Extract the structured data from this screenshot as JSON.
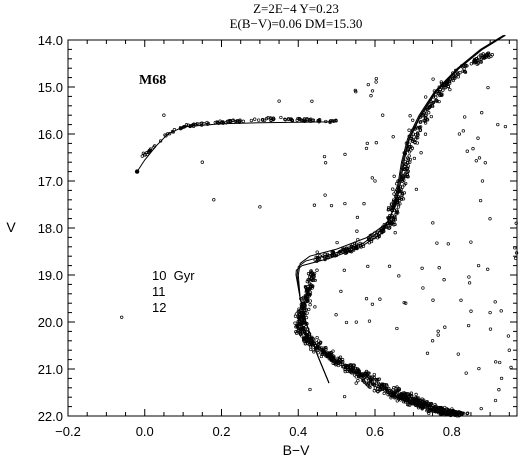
{
  "chart_data": {
    "type": "scatter",
    "title_lines": [
      "Z=2E−4 Y=0.23",
      "E(B−V)=0.06 DM=15.30"
    ],
    "cluster_label": "M68",
    "xlabel": "B−V",
    "ylabel": "V",
    "xlim": [
      -0.2,
      0.97
    ],
    "ylim": [
      22.0,
      14.0
    ],
    "y_inverted": true,
    "grid": false,
    "legend_position": "middle-left",
    "x_ticks": [
      {
        "value": -0.2,
        "label": "−0.2"
      },
      {
        "value": 0.0,
        "label": "0.0"
      },
      {
        "value": 0.2,
        "label": "0.2"
      },
      {
        "value": 0.4,
        "label": "0.4"
      },
      {
        "value": 0.6,
        "label": "0.6"
      },
      {
        "value": 0.8,
        "label": "0.8"
      }
    ],
    "y_ticks": [
      {
        "value": 14.0,
        "label": "14.0"
      },
      {
        "value": 15.0,
        "label": "15.0"
      },
      {
        "value": 16.0,
        "label": "16.0"
      },
      {
        "value": 17.0,
        "label": "17.0"
      },
      {
        "value": 18.0,
        "label": "18.0"
      },
      {
        "value": 19.0,
        "label": "19.0"
      },
      {
        "value": 20.0,
        "label": "20.0"
      },
      {
        "value": 21.0,
        "label": "21.0"
      },
      {
        "value": 22.0,
        "label": "22.0"
      }
    ],
    "legend": [
      "10  Gyr",
      "11",
      "12"
    ],
    "isochrones": [
      {
        "name": "10 Gyr",
        "x": [
          0.48,
          0.45,
          0.42,
          0.405,
          0.4,
          0.405,
          0.43,
          0.5,
          0.58,
          0.63,
          0.655,
          0.665,
          0.675,
          0.69,
          0.72,
          0.76,
          0.82,
          0.88,
          0.94
        ],
        "y": [
          21.3,
          20.7,
          20.0,
          19.5,
          19.0,
          18.75,
          18.6,
          18.45,
          18.2,
          17.9,
          17.5,
          17.1,
          16.6,
          16.1,
          15.6,
          15.1,
          14.6,
          14.2,
          13.9
        ]
      },
      {
        "name": "11",
        "x": [
          0.48,
          0.45,
          0.42,
          0.405,
          0.397,
          0.4,
          0.42,
          0.49,
          0.57,
          0.625,
          0.652,
          0.662,
          0.672,
          0.688,
          0.718,
          0.758,
          0.818,
          0.878,
          0.938
        ],
        "y": [
          21.3,
          20.7,
          20.0,
          19.5,
          19.0,
          18.82,
          18.7,
          18.55,
          18.32,
          18.0,
          17.55,
          17.1,
          16.6,
          16.1,
          15.6,
          15.1,
          14.6,
          14.2,
          13.9
        ]
      },
      {
        "name": "12",
        "x": [
          0.48,
          0.45,
          0.42,
          0.405,
          0.394,
          0.395,
          0.41,
          0.48,
          0.56,
          0.62,
          0.648,
          0.659,
          0.669,
          0.685,
          0.715,
          0.755,
          0.815,
          0.875,
          0.935
        ],
        "y": [
          21.3,
          20.7,
          20.0,
          19.5,
          19.0,
          18.9,
          18.8,
          18.65,
          18.42,
          18.1,
          17.6,
          17.1,
          16.6,
          16.1,
          15.6,
          15.1,
          14.6,
          14.2,
          13.9
        ]
      }
    ],
    "horizontal_branch_model": {
      "x": [
        -0.02,
        0.0,
        0.03,
        0.06,
        0.1,
        0.2,
        0.3,
        0.4,
        0.5
      ],
      "y": [
        16.8,
        16.55,
        16.25,
        16.0,
        15.85,
        15.78,
        15.76,
        15.75,
        15.74
      ]
    },
    "stars": {
      "main_sequence_ridge": {
        "x": [
          0.44,
          0.43,
          0.42,
          0.41,
          0.405,
          0.41,
          0.43,
          0.46,
          0.5,
          0.54,
          0.58,
          0.62,
          0.66,
          0.7,
          0.74,
          0.78,
          0.82
        ],
        "y": [
          18.9,
          19.2,
          19.5,
          19.8,
          20.0,
          20.2,
          20.4,
          20.6,
          20.8,
          21.0,
          21.2,
          21.4,
          21.55,
          21.7,
          21.8,
          21.9,
          21.98
        ]
      },
      "subgiant_branch": {
        "x": [
          0.44,
          0.5,
          0.55,
          0.6,
          0.64
        ],
        "y": [
          18.7,
          18.55,
          18.4,
          18.2,
          17.9
        ]
      },
      "red_giant_branch": {
        "x": [
          0.64,
          0.66,
          0.68,
          0.7,
          0.73,
          0.76,
          0.8,
          0.85,
          0.9
        ],
        "y": [
          17.9,
          17.3,
          16.7,
          16.1,
          15.6,
          15.2,
          14.8,
          14.5,
          14.3
        ]
      },
      "horizontal_branch": {
        "x": [
          0.0,
          0.05,
          0.1,
          0.15,
          0.2,
          0.25,
          0.3,
          0.35,
          0.4,
          0.45,
          0.5
        ],
        "y": [
          16.45,
          16.05,
          15.85,
          15.78,
          15.75,
          15.72,
          15.7,
          15.68,
          15.7,
          15.72,
          15.73
        ]
      },
      "field_stars": {
        "x": [
          0.18,
          0.3,
          0.55,
          0.62,
          0.72,
          0.85,
          0.9,
          0.95,
          0.88,
          0.78,
          0.6,
          0.52,
          0.47,
          0.75,
          0.92,
          0.82,
          -0.06,
          0.05,
          0.15,
          0.35,
          0.58,
          0.68,
          0.93,
          0.87,
          0.65
        ],
        "y": [
          17.4,
          17.55,
          15.1,
          15.6,
          16.4,
          18.3,
          19.8,
          20.6,
          17.0,
          19.1,
          17.0,
          18.9,
          17.3,
          20.4,
          15.8,
          16.0,
          19.9,
          15.6,
          16.6,
          15.3,
          16.2,
          19.6,
          21.2,
          18.8,
          16.9
        ]
      }
    }
  }
}
